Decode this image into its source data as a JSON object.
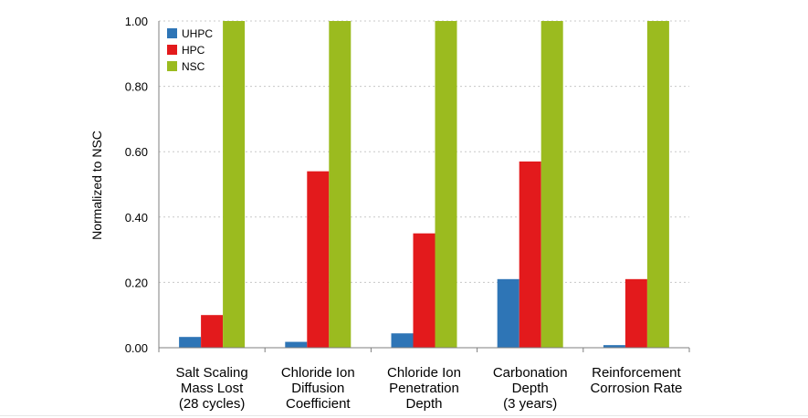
{
  "chart_data": {
    "type": "bar",
    "title": "",
    "xlabel": "",
    "ylabel": "Normalized to NSC",
    "ylim": [
      0,
      1.0
    ],
    "yticks": [
      "0.00",
      "0.20",
      "0.40",
      "0.60",
      "0.80",
      "1.00"
    ],
    "grid": true,
    "legend_position": "top-left",
    "categories": [
      [
        "Salt Scaling",
        "Mass Lost",
        "(28 cycles)"
      ],
      [
        "Chloride Ion",
        "Diffusion",
        "Coefficient"
      ],
      [
        "Chloride Ion",
        "Penetration",
        "Depth"
      ],
      [
        "Carbonation",
        "Depth",
        "(3 years)"
      ],
      [
        "Reinforcement",
        "Corrosion Rate"
      ]
    ],
    "series": [
      {
        "name": "UHPC",
        "color": "#2e75b6",
        "values": [
          0.033,
          0.018,
          0.044,
          0.21,
          0.008
        ]
      },
      {
        "name": "HPC",
        "color": "#e31a1c",
        "values": [
          0.1,
          0.54,
          0.35,
          0.57,
          0.21
        ]
      },
      {
        "name": "NSC",
        "color": "#9bbb1f",
        "values": [
          1.0,
          1.0,
          1.0,
          1.0,
          1.0
        ]
      }
    ]
  }
}
